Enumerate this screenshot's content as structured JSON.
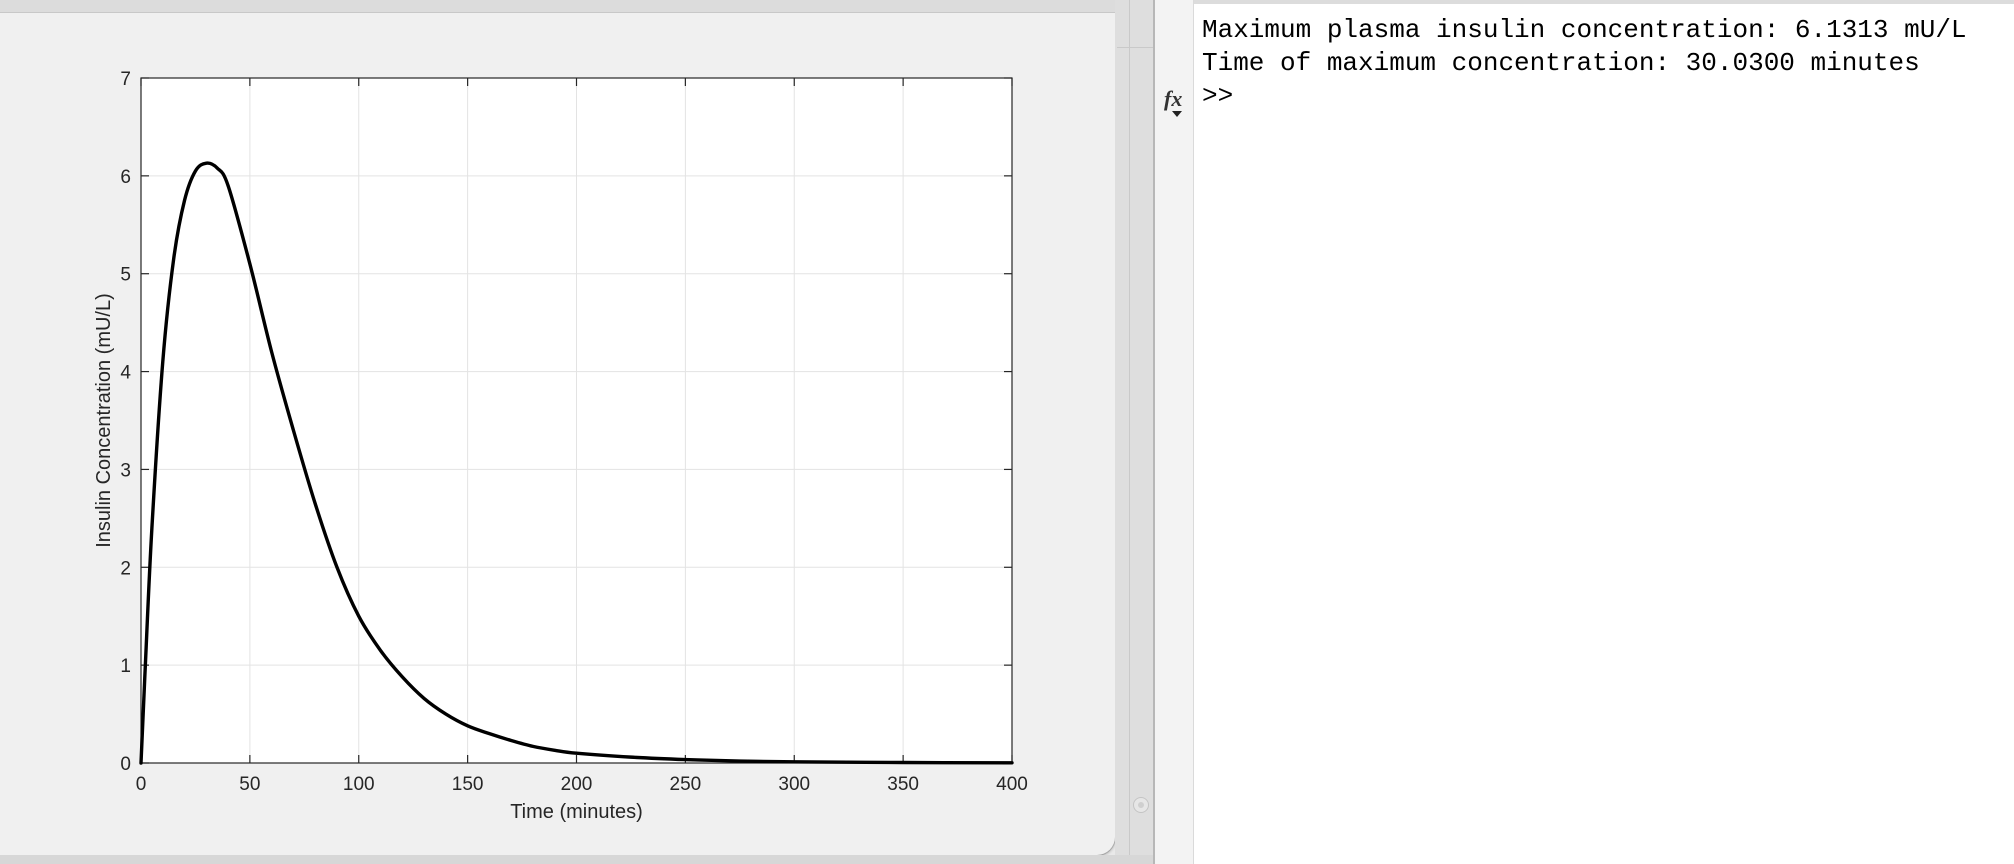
{
  "figure": {
    "chart_data": {
      "type": "line",
      "xlabel": "Time (minutes)",
      "ylabel": "Insulin Concentration (mU/L)",
      "xlim": [
        0,
        400
      ],
      "ylim": [
        0,
        7
      ],
      "x_ticks": [
        0,
        50,
        100,
        150,
        200,
        250,
        300,
        350,
        400
      ],
      "y_ticks": [
        0,
        1,
        2,
        3,
        4,
        5,
        6,
        7
      ],
      "grid": true,
      "series": [
        {
          "color": "#000000",
          "x": [
            0,
            2,
            5,
            10,
            15,
            20,
            25,
            30,
            35,
            40,
            50,
            60,
            70,
            80,
            90,
            100,
            110,
            120,
            130,
            140,
            150,
            160,
            170,
            180,
            190,
            200,
            225,
            250,
            275,
            300,
            350,
            400
          ],
          "y": [
            0,
            1.0,
            2.4,
            4.1,
            5.15,
            5.75,
            6.05,
            6.13,
            6.08,
            5.9,
            5.1,
            4.2,
            3.4,
            2.65,
            2.0,
            1.5,
            1.15,
            0.88,
            0.66,
            0.5,
            0.38,
            0.3,
            0.23,
            0.17,
            0.13,
            0.1,
            0.06,
            0.035,
            0.02,
            0.012,
            0.005,
            0.002
          ]
        }
      ]
    }
  },
  "command_window": {
    "lines": [
      "Maximum plasma insulin concentration: 6.1313 mU/L",
      "Time of maximum concentration: 30.0300 minutes"
    ],
    "fx_label": "fx",
    "prompt": ">>"
  }
}
